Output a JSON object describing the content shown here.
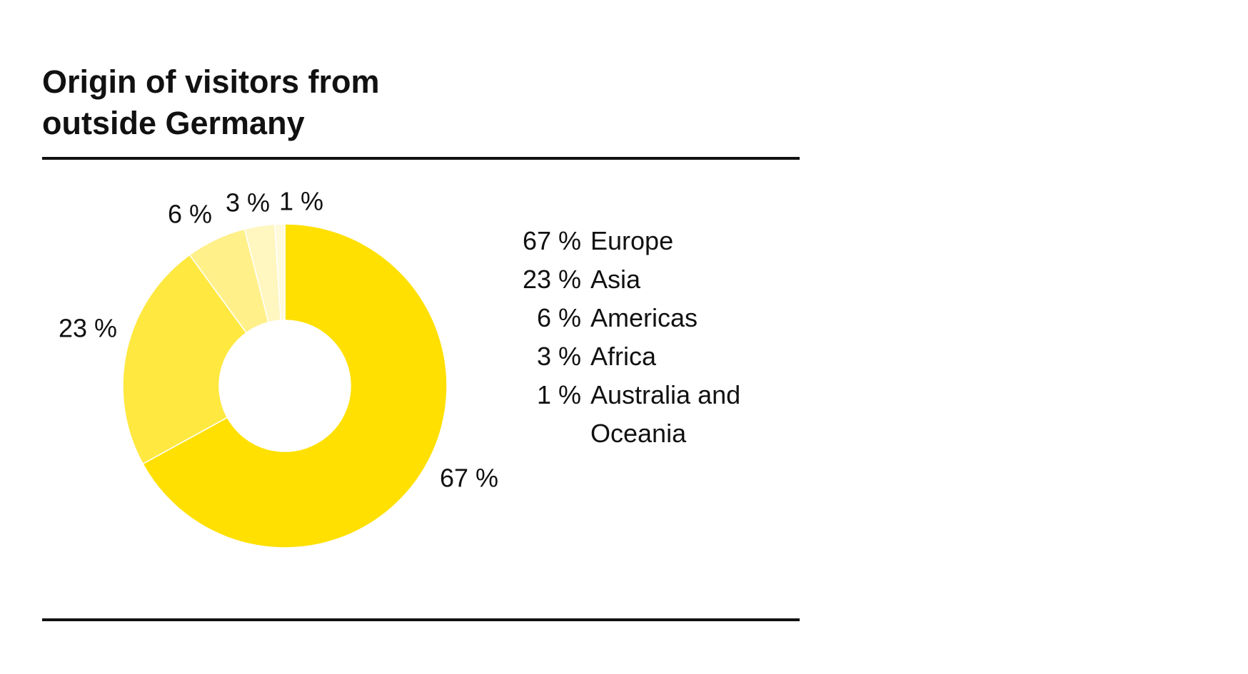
{
  "chart_data": {
    "type": "donut",
    "title": "Origin of visitors from outside Germany",
    "categories": [
      "Europe",
      "Asia",
      "Americas",
      "Africa",
      "Australia and Oceania"
    ],
    "values": [
      67,
      23,
      6,
      3,
      1
    ],
    "value_labels": [
      "67 %",
      "23 %",
      "6 %",
      "3 %",
      "1 %"
    ],
    "colors": [
      "#ffe000",
      "#ffe840",
      "#fff08a",
      "#fff6c0",
      "#fffadc"
    ]
  }
}
